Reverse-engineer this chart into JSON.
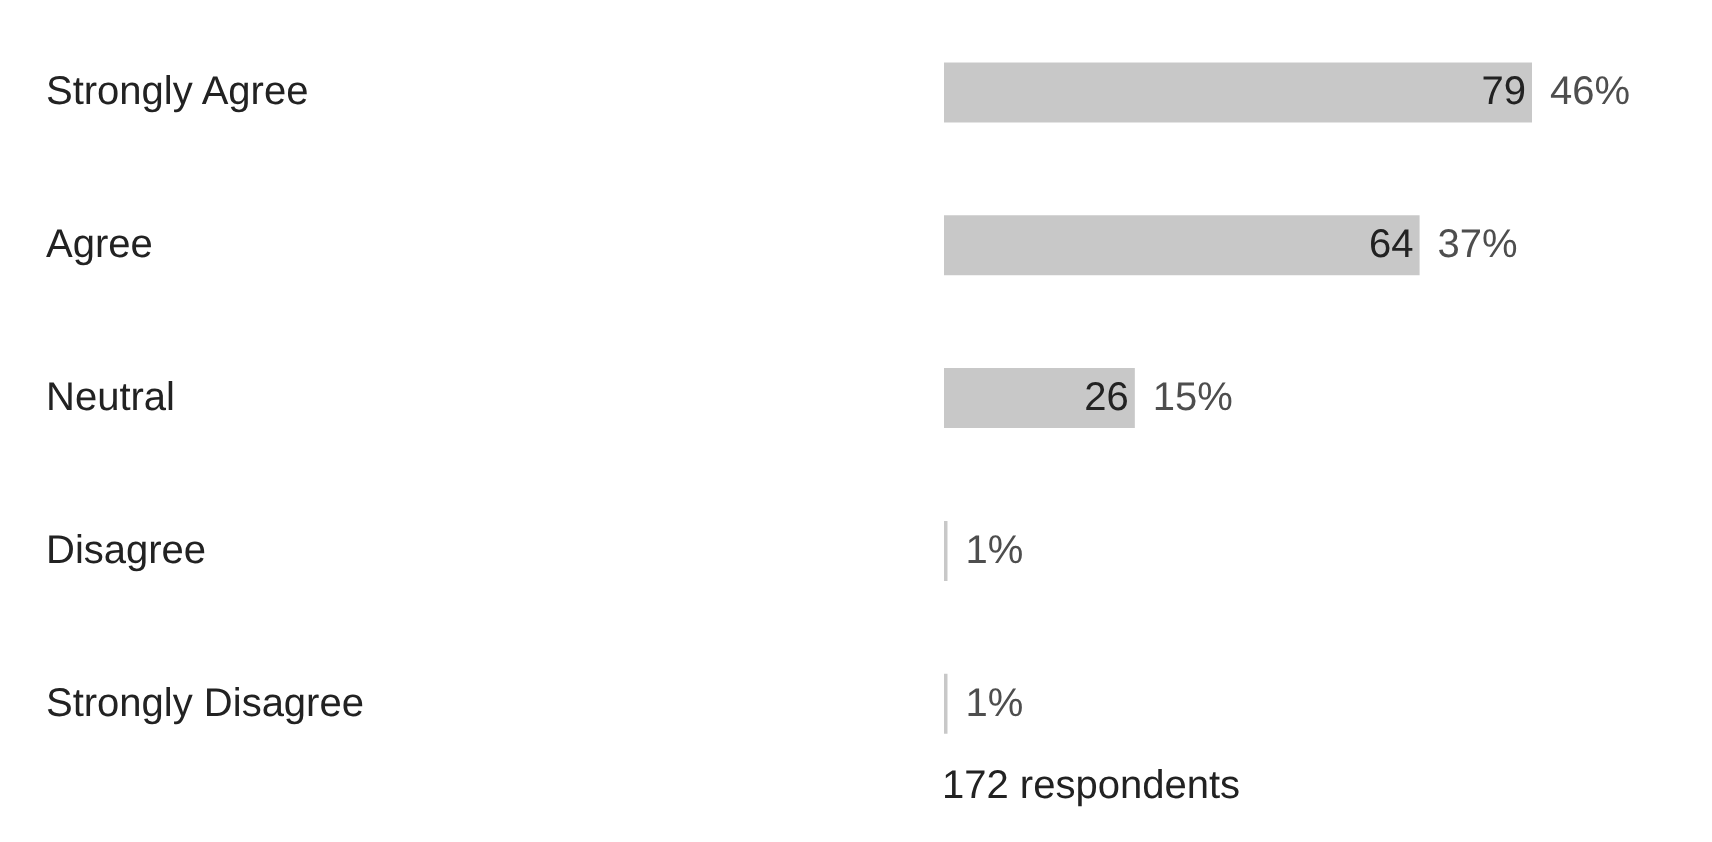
{
  "chart_data": {
    "type": "bar",
    "orientation": "horizontal",
    "categories": [
      "Strongly Agree",
      "Agree",
      "Neutral",
      "Disagree",
      "Strongly Disagree"
    ],
    "values": [
      79,
      64,
      26,
      1,
      1
    ],
    "value_labels": [
      "79",
      "64",
      "26",
      null,
      null
    ],
    "color": "#c8c8c8",
    "annotations": [
      {
        "text": "46%",
        "x": 79,
        "y": "Strongly Agree"
      },
      {
        "text": "37%",
        "x": 64,
        "y": "Agree"
      },
      {
        "text": "15%",
        "x": 26,
        "y": "Neutral"
      },
      {
        "text": "1%",
        "x": 1,
        "y": "Disagree"
      },
      {
        "text": "1%",
        "x": 1,
        "y": "Strongly Disagree"
      },
      "172 respondents"
    ]
  }
}
